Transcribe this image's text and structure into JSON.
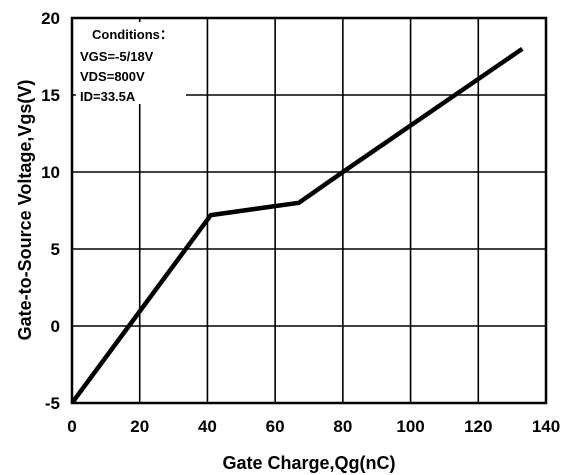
{
  "chart_data": {
    "type": "line",
    "title": "",
    "xlabel": "Gate Charge,Qg(nC)",
    "ylabel": "Gate-to-Source Voltage,Vgs(V)",
    "xlim": [
      0,
      140
    ],
    "ylim": [
      -5,
      20
    ],
    "xticks": [
      0,
      20,
      40,
      60,
      80,
      100,
      120,
      140
    ],
    "yticks": [
      -5,
      0,
      5,
      10,
      15,
      20
    ],
    "xtick_labels": [
      "0",
      "20",
      "40",
      "60",
      "80",
      "100",
      "120",
      "140"
    ],
    "ytick_labels": [
      "-5",
      "0",
      "5",
      "10",
      "15",
      "20"
    ],
    "grid": true,
    "series": [
      {
        "x": [
          0,
          41,
          67,
          80,
          133
        ],
        "y": [
          -5,
          7.2,
          8,
          10,
          18
        ]
      }
    ],
    "annotations": {
      "conditions_title": "Conditions：",
      "lines": [
        "VGS=-5/18V",
        "VDS=800V",
        "ID=33.5A"
      ]
    },
    "line_color": "#000000"
  }
}
